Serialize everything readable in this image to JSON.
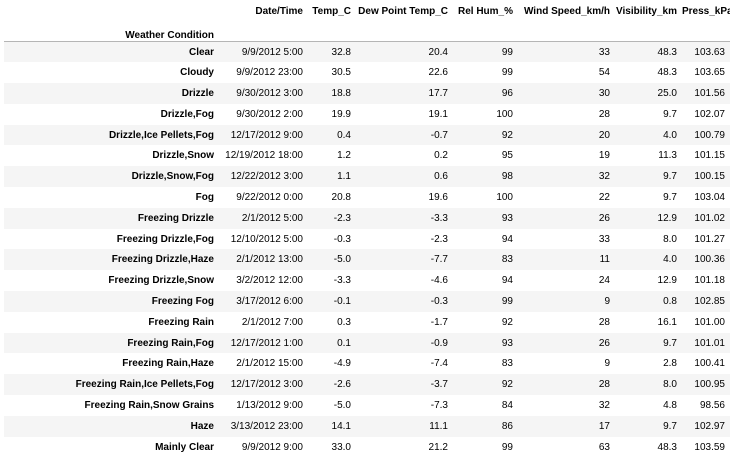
{
  "table": {
    "index_name": "Weather Condition",
    "columns": [
      "Date/Time",
      "Temp_C",
      "Dew Point Temp_C",
      "Rel Hum_%",
      "Wind Speed_km/h",
      "Visibility_km",
      "Press_kPa"
    ],
    "rows": [
      {
        "condition": "Clear",
        "datetime": "9/9/2012 5:00",
        "temp_c": "32.8",
        "dew_point": "20.4",
        "rel_hum": "99",
        "wind_speed": "33",
        "visibility": "48.3",
        "press": "103.63"
      },
      {
        "condition": "Cloudy",
        "datetime": "9/9/2012 23:00",
        "temp_c": "30.5",
        "dew_point": "22.6",
        "rel_hum": "99",
        "wind_speed": "54",
        "visibility": "48.3",
        "press": "103.65"
      },
      {
        "condition": "Drizzle",
        "datetime": "9/30/2012 3:00",
        "temp_c": "18.8",
        "dew_point": "17.7",
        "rel_hum": "96",
        "wind_speed": "30",
        "visibility": "25.0",
        "press": "101.56"
      },
      {
        "condition": "Drizzle,Fog",
        "datetime": "9/30/2012 2:00",
        "temp_c": "19.9",
        "dew_point": "19.1",
        "rel_hum": "100",
        "wind_speed": "28",
        "visibility": "9.7",
        "press": "102.07"
      },
      {
        "condition": "Drizzle,Ice Pellets,Fog",
        "datetime": "12/17/2012 9:00",
        "temp_c": "0.4",
        "dew_point": "-0.7",
        "rel_hum": "92",
        "wind_speed": "20",
        "visibility": "4.0",
        "press": "100.79"
      },
      {
        "condition": "Drizzle,Snow",
        "datetime": "12/19/2012 18:00",
        "temp_c": "1.2",
        "dew_point": "0.2",
        "rel_hum": "95",
        "wind_speed": "19",
        "visibility": "11.3",
        "press": "101.15"
      },
      {
        "condition": "Drizzle,Snow,Fog",
        "datetime": "12/22/2012 3:00",
        "temp_c": "1.1",
        "dew_point": "0.6",
        "rel_hum": "98",
        "wind_speed": "32",
        "visibility": "9.7",
        "press": "100.15"
      },
      {
        "condition": "Fog",
        "datetime": "9/22/2012 0:00",
        "temp_c": "20.8",
        "dew_point": "19.6",
        "rel_hum": "100",
        "wind_speed": "22",
        "visibility": "9.7",
        "press": "103.04"
      },
      {
        "condition": "Freezing Drizzle",
        "datetime": "2/1/2012 5:00",
        "temp_c": "-2.3",
        "dew_point": "-3.3",
        "rel_hum": "93",
        "wind_speed": "26",
        "visibility": "12.9",
        "press": "101.02"
      },
      {
        "condition": "Freezing Drizzle,Fog",
        "datetime": "12/10/2012 5:00",
        "temp_c": "-0.3",
        "dew_point": "-2.3",
        "rel_hum": "94",
        "wind_speed": "33",
        "visibility": "8.0",
        "press": "101.27"
      },
      {
        "condition": "Freezing Drizzle,Haze",
        "datetime": "2/1/2012 13:00",
        "temp_c": "-5.0",
        "dew_point": "-7.7",
        "rel_hum": "83",
        "wind_speed": "11",
        "visibility": "4.0",
        "press": "100.36"
      },
      {
        "condition": "Freezing Drizzle,Snow",
        "datetime": "3/2/2012 12:00",
        "temp_c": "-3.3",
        "dew_point": "-4.6",
        "rel_hum": "94",
        "wind_speed": "24",
        "visibility": "12.9",
        "press": "101.18"
      },
      {
        "condition": "Freezing Fog",
        "datetime": "3/17/2012 6:00",
        "temp_c": "-0.1",
        "dew_point": "-0.3",
        "rel_hum": "99",
        "wind_speed": "9",
        "visibility": "0.8",
        "press": "102.85"
      },
      {
        "condition": "Freezing Rain",
        "datetime": "2/1/2012 7:00",
        "temp_c": "0.3",
        "dew_point": "-1.7",
        "rel_hum": "92",
        "wind_speed": "28",
        "visibility": "16.1",
        "press": "101.00"
      },
      {
        "condition": "Freezing Rain,Fog",
        "datetime": "12/17/2012 1:00",
        "temp_c": "0.1",
        "dew_point": "-0.9",
        "rel_hum": "93",
        "wind_speed": "26",
        "visibility": "9.7",
        "press": "101.01"
      },
      {
        "condition": "Freezing Rain,Haze",
        "datetime": "2/1/2012 15:00",
        "temp_c": "-4.9",
        "dew_point": "-7.4",
        "rel_hum": "83",
        "wind_speed": "9",
        "visibility": "2.8",
        "press": "100.41"
      },
      {
        "condition": "Freezing Rain,Ice Pellets,Fog",
        "datetime": "12/17/2012 3:00",
        "temp_c": "-2.6",
        "dew_point": "-3.7",
        "rel_hum": "92",
        "wind_speed": "28",
        "visibility": "8.0",
        "press": "100.95"
      },
      {
        "condition": "Freezing Rain,Snow Grains",
        "datetime": "1/13/2012 9:00",
        "temp_c": "-5.0",
        "dew_point": "-7.3",
        "rel_hum": "84",
        "wind_speed": "32",
        "visibility": "4.8",
        "press": "98.56"
      },
      {
        "condition": "Haze",
        "datetime": "3/13/2012 23:00",
        "temp_c": "14.1",
        "dew_point": "11.1",
        "rel_hum": "86",
        "wind_speed": "17",
        "visibility": "9.7",
        "press": "102.97"
      },
      {
        "condition": "Mainly Clear",
        "datetime": "9/9/2012 9:00",
        "temp_c": "33.0",
        "dew_point": "21.2",
        "rel_hum": "99",
        "wind_speed": "63",
        "visibility": "48.3",
        "press": "103.59"
      }
    ]
  }
}
